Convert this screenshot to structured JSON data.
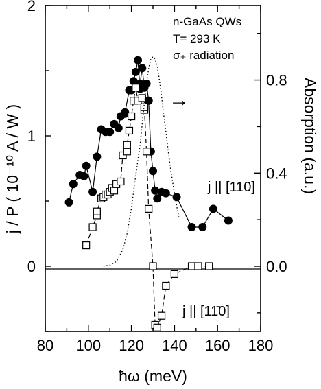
{
  "chart_data": {
    "type": "scatter",
    "xlabel": "ħω (meV)",
    "ylabel_left": "j / P  ( 10⁻¹⁰ A / W )",
    "ylabel_right": "Absorption (a.u.)",
    "xlim": [
      80,
      180
    ],
    "ylim_left": [
      -0.5,
      2
    ],
    "ylim_right": [
      -0.28,
      1.12
    ],
    "x_ticks": [
      "80",
      "100",
      "120",
      "140",
      "160",
      "180"
    ],
    "y_ticks_left": [
      "0",
      "1",
      "2"
    ],
    "y_ticks_right": [
      "0.0",
      "0.4",
      "0.8"
    ],
    "annotations": [
      "n-GaAs QWs",
      "T= 293 K",
      "σ₊ radiation"
    ],
    "series": [
      {
        "name": "j || [110]",
        "marker": "filled-circle",
        "line": "solid",
        "x": [
          91,
          93,
          96,
          98,
          99,
          102,
          104,
          106,
          108,
          110,
          112,
          114,
          115,
          117,
          117,
          119,
          120,
          121,
          122,
          123,
          124,
          124,
          125,
          126,
          127,
          128,
          129,
          130,
          131,
          132,
          134,
          136,
          141,
          148,
          153,
          158,
          165
        ],
        "y": [
          0.49,
          0.63,
          0.7,
          0.69,
          0.77,
          0.57,
          0.84,
          1.05,
          1.03,
          1.03,
          1.09,
          1.06,
          1.15,
          1.17,
          1.18,
          1.35,
          1.35,
          1.42,
          1.49,
          1.58,
          1.36,
          1.4,
          1.52,
          1.37,
          1.4,
          1.27,
          0.88,
          0.73,
          0.58,
          0.52,
          0.57,
          0.56,
          0.53,
          0.3,
          0.3,
          0.44,
          0.35
        ]
      },
      {
        "name": "j || [11̄0]",
        "marker": "open-square",
        "line": "dashed",
        "x": [
          99,
          102,
          104,
          104,
          106,
          107,
          108,
          109,
          110,
          111,
          112,
          113,
          115,
          116,
          118,
          118,
          119,
          120,
          121,
          122,
          123,
          125,
          126,
          126,
          127,
          128,
          130,
          131,
          132,
          134,
          136,
          140,
          148,
          151,
          156
        ],
        "y": [
          0.16,
          0.3,
          0.39,
          0.42,
          0.52,
          0.53,
          0.55,
          0.55,
          0.57,
          0.6,
          0.58,
          0.63,
          0.65,
          0.85,
          0.88,
          0.93,
          1.04,
          1.15,
          1.27,
          1.37,
          1.27,
          1.29,
          1.2,
          1.22,
          0.88,
          0.44,
          0.0,
          -0.45,
          -0.47,
          -0.38,
          -0.15,
          -0.06,
          0.0,
          0.0,
          0.0
        ]
      },
      {
        "name": "Absorption",
        "marker": "none",
        "line": "dotted",
        "axis": "right",
        "x": [
          107,
          110,
          113,
          116,
          118,
          120,
          122,
          124,
          126,
          127,
          128,
          129,
          130,
          131,
          132,
          133,
          134,
          135,
          136,
          137,
          138,
          139,
          140,
          141,
          142
        ],
        "y": [
          0.0,
          0.005,
          0.02,
          0.07,
          0.14,
          0.25,
          0.39,
          0.52,
          0.7,
          0.78,
          0.85,
          0.89,
          0.9,
          0.89,
          0.86,
          0.8,
          0.73,
          0.65,
          0.58,
          0.5,
          0.43,
          0.37,
          0.31,
          0.26,
          0.21
        ]
      }
    ],
    "arrow": "→",
    "grid": false,
    "zero_line": true
  }
}
